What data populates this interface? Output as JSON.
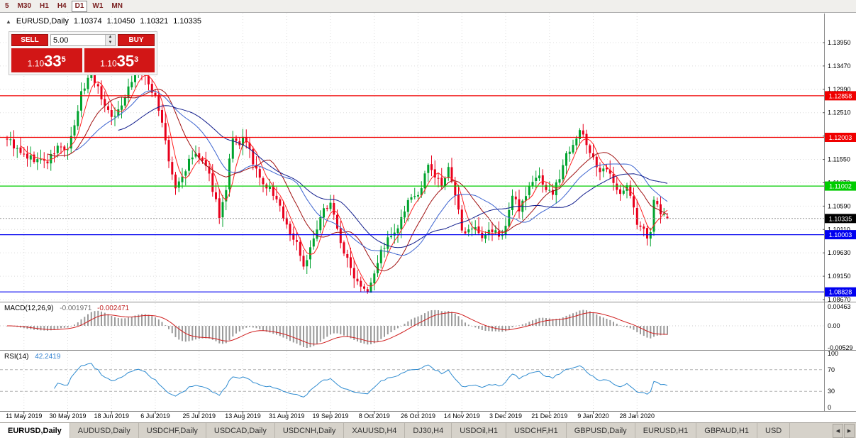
{
  "toolbar": {
    "timeframes": [
      "5",
      "M30",
      "H1",
      "H4",
      "D1",
      "W1",
      "MN"
    ],
    "active": "D1"
  },
  "chart_header": {
    "collapse_arrow": "▲",
    "symbol": "EURUSD,Daily",
    "open": "1.10374",
    "high": "1.10450",
    "low": "1.10321",
    "close": "1.10335"
  },
  "trade_panel": {
    "sell_label": "SELL",
    "buy_label": "BUY",
    "volume": "5.00",
    "spinner_up": "▲",
    "spinner_down": "▼",
    "sell_price": {
      "big_left": "1.10",
      "pips": "33",
      "frac": "5"
    },
    "buy_price": {
      "big_left": "1.10",
      "pips": "35",
      "frac": "3"
    }
  },
  "price_axis": {
    "labels": [
      "1.13950",
      "1.13470",
      "1.12990",
      "1.12510",
      "1.12030",
      "1.11550",
      "1.11070",
      "1.10590",
      "1.10110",
      "1.09630",
      "1.09150",
      "1.08670"
    ]
  },
  "levels": [
    {
      "price": 1.12858,
      "label": "1.12858",
      "color": "#F00000"
    },
    {
      "price": 1.12003,
      "label": "1.12003",
      "color": "#F00000"
    },
    {
      "price": 1.11002,
      "label": "1.11002",
      "color": "#00CC00"
    },
    {
      "price": 1.10003,
      "label": "1.10003",
      "color": "#0000F0"
    },
    {
      "price": 1.08828,
      "label": "1.08828",
      "color": "#0000F0"
    }
  ],
  "current_price": {
    "price": 1.10335,
    "label": "1.10335",
    "color": "#000000"
  },
  "indicators": {
    "macd": {
      "name": "MACD(12,26,9)",
      "value_main": "-0.001971",
      "value_signal": "-0.002471",
      "axis_labels": [
        "0.00463",
        "0.00",
        "-0.00529"
      ],
      "fast": 12,
      "slow": 26,
      "signal": 9
    },
    "rsi": {
      "name": "RSI(14)",
      "value": "42.2419",
      "axis_labels": [
        "100",
        "70",
        "30",
        "0"
      ],
      "period": 14,
      "levels": [
        70,
        30
      ]
    }
  },
  "dates": [
    {
      "i": 5,
      "label": "11 May 2019"
    },
    {
      "i": 18,
      "label": "30 May 2019"
    },
    {
      "i": 31,
      "label": "18 Jun 2019"
    },
    {
      "i": 44,
      "label": "6 Jul 2019"
    },
    {
      "i": 57,
      "label": "25 Jul 2019"
    },
    {
      "i": 70,
      "label": "13 Aug 2019"
    },
    {
      "i": 83,
      "label": "31 Aug 2019"
    },
    {
      "i": 96,
      "label": "19 Sep 2019"
    },
    {
      "i": 109,
      "label": "8 Oct 2019"
    },
    {
      "i": 122,
      "label": "26 Oct 2019"
    },
    {
      "i": 135,
      "label": "14 Nov 2019"
    },
    {
      "i": 148,
      "label": "3 Dec 2019"
    },
    {
      "i": 161,
      "label": "21 Dec 2019"
    },
    {
      "i": 174,
      "label": "9 Jan 2020"
    },
    {
      "i": 187,
      "label": "28 Jan 2020"
    }
  ],
  "chart_data": {
    "type": "candlestick",
    "symbol": "EURUSD",
    "timeframe": "Daily",
    "num_candles": 197,
    "seed": 9,
    "anchors": [
      [
        0,
        1.12
      ],
      [
        4,
        1.1165
      ],
      [
        8,
        1.1155
      ],
      [
        12,
        1.115
      ],
      [
        15,
        1.118
      ],
      [
        18,
        1.1175
      ],
      [
        20,
        1.122
      ],
      [
        22,
        1.129
      ],
      [
        25,
        1.1335
      ],
      [
        27,
        1.13
      ],
      [
        29,
        1.1265
      ],
      [
        32,
        1.124
      ],
      [
        34,
        1.127
      ],
      [
        36,
        1.1305
      ],
      [
        39,
        1.134
      ],
      [
        41,
        1.132
      ],
      [
        44,
        1.1285
      ],
      [
        46,
        1.123
      ],
      [
        48,
        1.115
      ],
      [
        50,
        1.1095
      ],
      [
        52,
        1.112
      ],
      [
        54,
        1.115
      ],
      [
        56,
        1.1165
      ],
      [
        58,
        1.115
      ],
      [
        60,
        1.112
      ],
      [
        62,
        1.107
      ],
      [
        63,
        1.104
      ],
      [
        65,
        1.109
      ],
      [
        66,
        1.115
      ],
      [
        67,
        1.1195
      ],
      [
        69,
        1.118
      ],
      [
        70,
        1.1205
      ],
      [
        72,
        1.117
      ],
      [
        74,
        1.113
      ],
      [
        76,
        1.11
      ],
      [
        78,
        1.1095
      ],
      [
        80,
        1.107
      ],
      [
        82,
        1.104
      ],
      [
        84,
        1.1
      ],
      [
        86,
        1.0985
      ],
      [
        88,
        1.0935
      ],
      [
        90,
        1.097
      ],
      [
        92,
        1.101
      ],
      [
        94,
        1.105
      ],
      [
        96,
        1.107
      ],
      [
        98,
        1.101
      ],
      [
        100,
        1.0965
      ],
      [
        102,
        1.093
      ],
      [
        104,
        1.0905
      ],
      [
        107,
        1.0888
      ],
      [
        109,
        1.0925
      ],
      [
        111,
        1.0965
      ],
      [
        113,
        1.099
      ],
      [
        115,
        1.1
      ],
      [
        117,
        1.103
      ],
      [
        119,
        1.1065
      ],
      [
        121,
        1.108
      ],
      [
        123,
        1.109
      ],
      [
        125,
        1.115
      ],
      [
        127,
        1.112
      ],
      [
        129,
        1.11
      ],
      [
        131,
        1.1135
      ],
      [
        133,
        1.108
      ],
      [
        135,
        1.1015
      ],
      [
        137,
        1.1005
      ],
      [
        139,
        1.101
      ],
      [
        141,
        1.0988
      ],
      [
        143,
        1.1005
      ],
      [
        145,
        1.101
      ],
      [
        146,
        1.0992
      ],
      [
        148,
        1.102
      ],
      [
        150,
        1.108
      ],
      [
        152,
        1.1055
      ],
      [
        154,
        1.1085
      ],
      [
        156,
        1.111
      ],
      [
        158,
        1.112
      ],
      [
        160,
        1.1095
      ],
      [
        162,
        1.1085
      ],
      [
        164,
        1.112
      ],
      [
        166,
        1.1165
      ],
      [
        168,
        1.119
      ],
      [
        170,
        1.1215
      ],
      [
        172,
        1.1185
      ],
      [
        174,
        1.116
      ],
      [
        176,
        1.1125
      ],
      [
        178,
        1.1135
      ],
      [
        180,
        1.1105
      ],
      [
        182,
        1.109
      ],
      [
        184,
        1.11
      ],
      [
        186,
        1.1055
      ],
      [
        187,
        1.1022
      ],
      [
        189,
        1.1008
      ],
      [
        190,
        1.0998
      ],
      [
        191,
        1.1008
      ],
      [
        192,
        1.1065
      ],
      [
        193,
        1.1058
      ],
      [
        194,
        1.1045
      ],
      [
        196,
        1.10335
      ]
    ],
    "last_ohlc": {
      "open": 1.10374,
      "high": 1.1045,
      "low": 1.10321,
      "close": 1.10335
    },
    "extremes": {
      "high_index": 39,
      "high": 1.135,
      "low_index": 107,
      "low": 1.0879
    },
    "bull_color": "#00A32E",
    "bear_color": "#E8001C",
    "moving_averages": [
      {
        "period": 5,
        "color": "#FF2020"
      },
      {
        "period": 13,
        "color": "#A01010"
      },
      {
        "period": 21,
        "color": "#3C64D0"
      },
      {
        "period": 34,
        "color": "#101C8C"
      }
    ],
    "macd_colors": {
      "histogram": "#9A9A9A",
      "signal": "#D02020"
    },
    "rsi_color": "#2E8BD0",
    "grid_color": "#DCDCDC"
  },
  "tabs": {
    "scroll_left": "◀",
    "scroll_right": "▶",
    "items": [
      {
        "label": "EURUSD,Daily",
        "active": true
      },
      {
        "label": "AUDUSD,Daily",
        "active": false
      },
      {
        "label": "USDCHF,Daily",
        "active": false
      },
      {
        "label": "USDCAD,Daily",
        "active": false
      },
      {
        "label": "USDCNH,Daily",
        "active": false
      },
      {
        "label": "XAUUSD,H4",
        "active": false
      },
      {
        "label": "DJ30,H4",
        "active": false
      },
      {
        "label": "USDOil,H1",
        "active": false
      },
      {
        "label": "USDCHF,H1",
        "active": false
      },
      {
        "label": "GBPUSD,Daily",
        "active": false
      },
      {
        "label": "EURUSD,H1",
        "active": false
      },
      {
        "label": "GBPAUD,H1",
        "active": false
      },
      {
        "label": "USD",
        "active": false
      }
    ]
  }
}
